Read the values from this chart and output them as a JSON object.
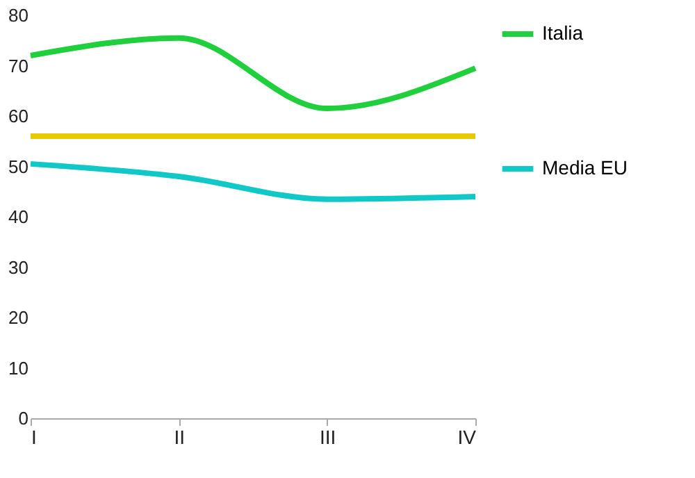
{
  "chart_data": {
    "type": "line",
    "categories": [
      "I",
      "II",
      "III",
      "IV"
    ],
    "series": [
      {
        "name": "Italia",
        "color": "#1fcf3c",
        "values": [
          72,
          75.5,
          61.5,
          69.5
        ]
      },
      {
        "color": "#e8c800",
        "values": [
          56,
          56,
          56,
          56
        ]
      },
      {
        "name": "Media EU",
        "color": "#11c8c8",
        "values": [
          50.5,
          48,
          43.5,
          44
        ]
      }
    ],
    "ylim": [
      0,
      80
    ],
    "yticks": [
      0,
      10,
      20,
      30,
      40,
      50,
      60,
      70,
      80
    ],
    "grid": false,
    "legend": "right",
    "marker": "none",
    "line_style": "solid"
  }
}
